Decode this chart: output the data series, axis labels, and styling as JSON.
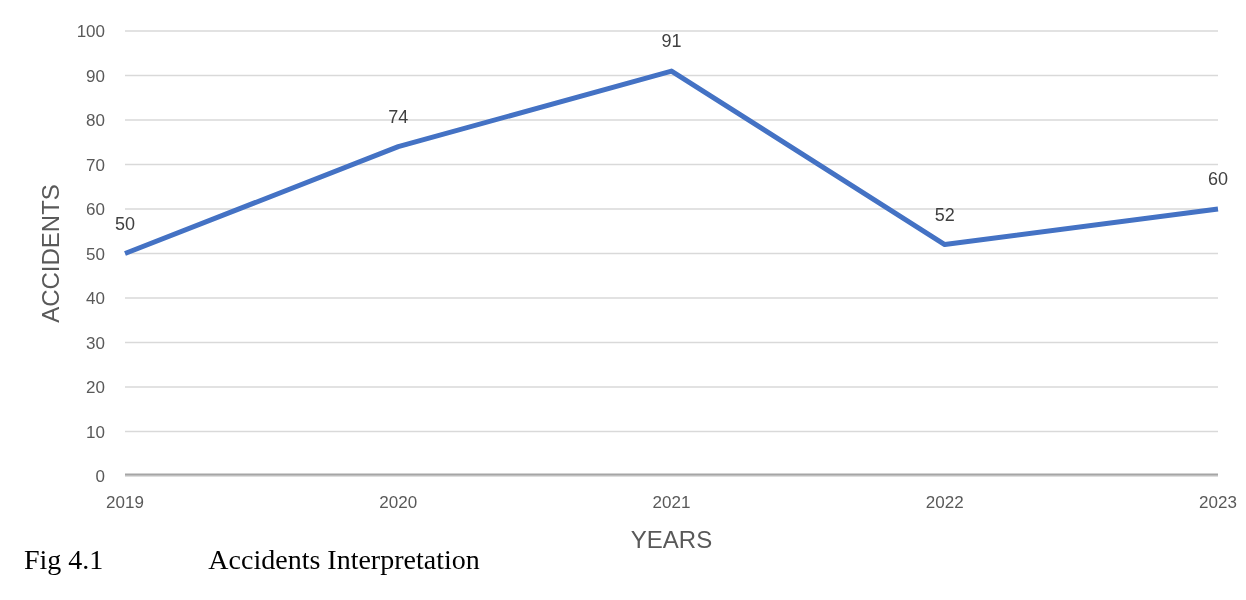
{
  "chart_data": {
    "type": "line",
    "xlabel": "YEARS",
    "ylabel": "ACCIDENTS",
    "categories": [
      "2019",
      "2020",
      "2021",
      "2022",
      "2023"
    ],
    "series": [
      {
        "color": "#4472c4",
        "values": [
          50,
          74,
          91,
          52,
          60
        ],
        "value_labels": [
          "50",
          "74",
          "91",
          "52",
          "60"
        ]
      },
      {
        "color": "#a5a5a5",
        "values": [
          0,
          0,
          0,
          0,
          0
        ]
      }
    ],
    "ylim": [
      0,
      100
    ],
    "yticks": [
      0,
      10,
      20,
      30,
      40,
      50,
      60,
      70,
      80,
      90,
      100
    ],
    "grid": "y",
    "legend": false,
    "marker": "none",
    "line_style": "solid",
    "annotations": [
      "Fig 4.1               Accidents Interpretation"
    ]
  }
}
